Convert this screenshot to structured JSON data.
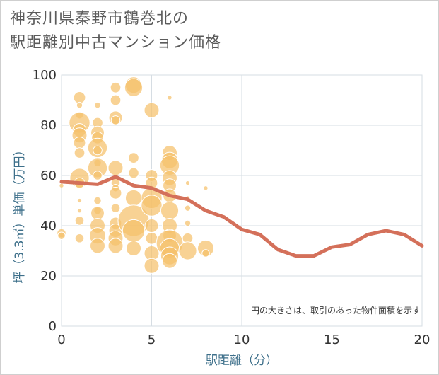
{
  "title": {
    "line1": "神奈川県秦野市鶴巻北の",
    "line2": "駅距離別中古マンション価格"
  },
  "colors": {
    "bubble_fill": "#f5c16b",
    "bubble_stroke": "#ffffff",
    "line": "#d4705a",
    "grid": "#d6dde3",
    "background": "#ffffff"
  },
  "chart_data": {
    "type": "scatter",
    "xlabel": "駅距離（分）",
    "ylabel": "坪（3.3㎡）単価（万円）",
    "xlim": [
      0,
      20
    ],
    "ylim": [
      0,
      100
    ],
    "x_ticks": [
      0,
      5,
      10,
      15,
      20
    ],
    "y_ticks": [
      0,
      20,
      40,
      60,
      80,
      100
    ],
    "grid": true,
    "note": "円の大きさは、取引のあった物件面積を示す",
    "bubbles": [
      {
        "x": 0,
        "y": 37,
        "s": 6
      },
      {
        "x": 0,
        "y": 56,
        "s": 3
      },
      {
        "x": 0,
        "y": 36,
        "s": 5
      },
      {
        "x": 1,
        "y": 91,
        "s": 8
      },
      {
        "x": 1,
        "y": 88,
        "s": 4
      },
      {
        "x": 1,
        "y": 84,
        "s": 5
      },
      {
        "x": 1,
        "y": 81,
        "s": 14
      },
      {
        "x": 1,
        "y": 78,
        "s": 9
      },
      {
        "x": 1,
        "y": 76,
        "s": 10
      },
      {
        "x": 1,
        "y": 73,
        "s": 8
      },
      {
        "x": 1,
        "y": 69,
        "s": 7
      },
      {
        "x": 1,
        "y": 59,
        "s": 13
      },
      {
        "x": 1,
        "y": 57,
        "s": 7
      },
      {
        "x": 1,
        "y": 50,
        "s": 3
      },
      {
        "x": 1,
        "y": 46,
        "s": 3
      },
      {
        "x": 1,
        "y": 42,
        "s": 6
      },
      {
        "x": 1,
        "y": 35,
        "s": 6
      },
      {
        "x": 2,
        "y": 88,
        "s": 4
      },
      {
        "x": 2,
        "y": 81,
        "s": 7
      },
      {
        "x": 2,
        "y": 77,
        "s": 9
      },
      {
        "x": 2,
        "y": 75,
        "s": 8
      },
      {
        "x": 2,
        "y": 71,
        "s": 13
      },
      {
        "x": 2,
        "y": 70,
        "s": 6
      },
      {
        "x": 2,
        "y": 65,
        "s": 5
      },
      {
        "x": 2,
        "y": 63,
        "s": 13
      },
      {
        "x": 2,
        "y": 60,
        "s": 6
      },
      {
        "x": 2,
        "y": 50,
        "s": 5
      },
      {
        "x": 2,
        "y": 46,
        "s": 5
      },
      {
        "x": 2,
        "y": 45,
        "s": 9
      },
      {
        "x": 2,
        "y": 40,
        "s": 10
      },
      {
        "x": 2,
        "y": 36,
        "s": 11
      },
      {
        "x": 2,
        "y": 32,
        "s": 10
      },
      {
        "x": 3,
        "y": 95,
        "s": 7
      },
      {
        "x": 3,
        "y": 90,
        "s": 7
      },
      {
        "x": 3,
        "y": 83,
        "s": 9
      },
      {
        "x": 3,
        "y": 82,
        "s": 6
      },
      {
        "x": 3,
        "y": 63,
        "s": 10
      },
      {
        "x": 3,
        "y": 57,
        "s": 6
      },
      {
        "x": 3,
        "y": 55,
        "s": 5
      },
      {
        "x": 3,
        "y": 53,
        "s": 8
      },
      {
        "x": 3,
        "y": 47,
        "s": 6
      },
      {
        "x": 3,
        "y": 41,
        "s": 8
      },
      {
        "x": 3,
        "y": 38,
        "s": 9
      },
      {
        "x": 3,
        "y": 35,
        "s": 10
      },
      {
        "x": 3,
        "y": 32,
        "s": 10
      },
      {
        "x": 4,
        "y": 96,
        "s": 11
      },
      {
        "x": 4,
        "y": 95,
        "s": 12
      },
      {
        "x": 4,
        "y": 67,
        "s": 7
      },
      {
        "x": 4,
        "y": 61,
        "s": 7
      },
      {
        "x": 4,
        "y": 51,
        "s": 11
      },
      {
        "x": 4,
        "y": 42,
        "s": 21
      },
      {
        "x": 4,
        "y": 38,
        "s": 15
      },
      {
        "x": 4,
        "y": 31,
        "s": 10
      },
      {
        "x": 5,
        "y": 86,
        "s": 10
      },
      {
        "x": 5,
        "y": 60,
        "s": 8
      },
      {
        "x": 5,
        "y": 57,
        "s": 8
      },
      {
        "x": 5,
        "y": 51,
        "s": 14
      },
      {
        "x": 5,
        "y": 48,
        "s": 14
      },
      {
        "x": 5,
        "y": 40,
        "s": 9
      },
      {
        "x": 5,
        "y": 35,
        "s": 8
      },
      {
        "x": 5,
        "y": 29,
        "s": 10
      },
      {
        "x": 5,
        "y": 24,
        "s": 10
      },
      {
        "x": 6,
        "y": 91,
        "s": 3
      },
      {
        "x": 6,
        "y": 69,
        "s": 10
      },
      {
        "x": 6,
        "y": 66,
        "s": 11
      },
      {
        "x": 6,
        "y": 64,
        "s": 13
      },
      {
        "x": 6,
        "y": 59,
        "s": 10
      },
      {
        "x": 6,
        "y": 56,
        "s": 9
      },
      {
        "x": 6,
        "y": 52,
        "s": 9
      },
      {
        "x": 6,
        "y": 46,
        "s": 12
      },
      {
        "x": 6,
        "y": 40,
        "s": 10
      },
      {
        "x": 6,
        "y": 36,
        "s": 9
      },
      {
        "x": 6,
        "y": 33,
        "s": 18
      },
      {
        "x": 6,
        "y": 31,
        "s": 13
      },
      {
        "x": 6,
        "y": 28,
        "s": 12
      },
      {
        "x": 6,
        "y": 26,
        "s": 10
      },
      {
        "x": 7,
        "y": 57,
        "s": 3
      },
      {
        "x": 7,
        "y": 51,
        "s": 3
      },
      {
        "x": 7,
        "y": 47,
        "s": 4
      },
      {
        "x": 7,
        "y": 41,
        "s": 4
      },
      {
        "x": 7,
        "y": 35,
        "s": 7
      },
      {
        "x": 7,
        "y": 30,
        "s": 12
      },
      {
        "x": 8,
        "y": 55,
        "s": 3
      },
      {
        "x": 8,
        "y": 31,
        "s": 11
      },
      {
        "x": 8,
        "y": 29,
        "s": 5
      }
    ],
    "series": [
      {
        "x": [
          0,
          1,
          2,
          3,
          4,
          5,
          6,
          7,
          8,
          9,
          10,
          11,
          12,
          13,
          14,
          15,
          16,
          17,
          18,
          19,
          20
        ],
        "y": [
          57.5,
          57,
          56.5,
          59.5,
          56,
          55,
          52,
          50.5,
          46,
          43.5,
          38.5,
          36.5,
          30.5,
          28,
          28,
          31.5,
          32.5,
          36.5,
          38,
          36.5,
          32
        ]
      }
    ]
  }
}
